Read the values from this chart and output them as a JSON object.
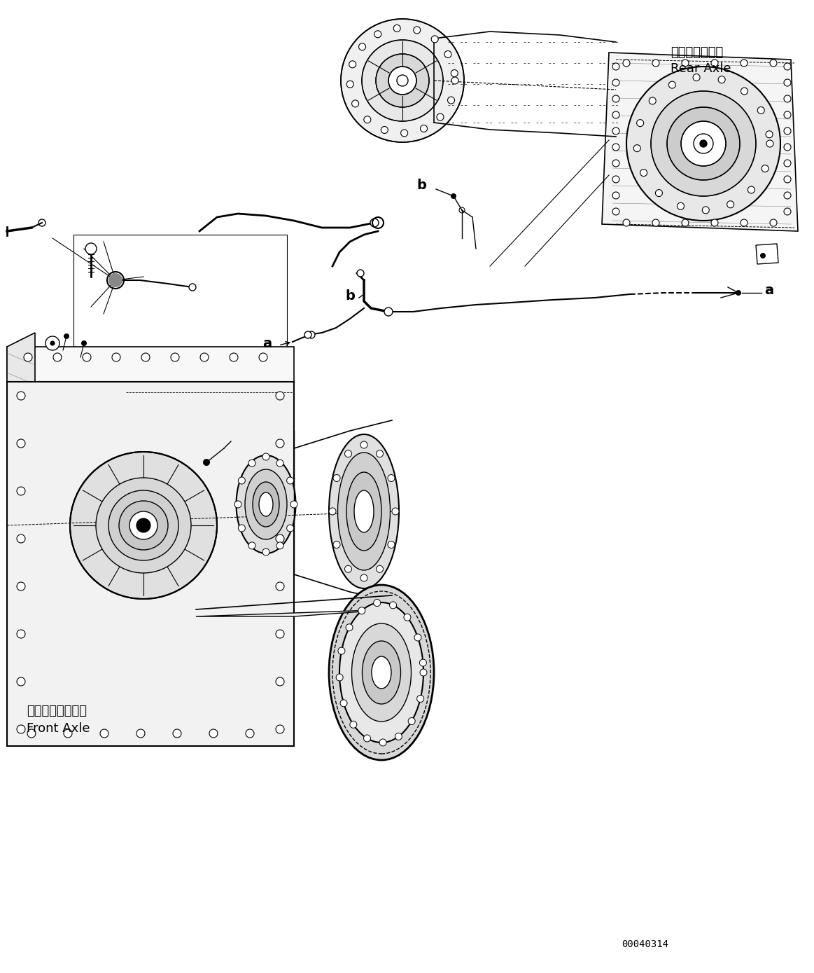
{
  "background_color": "#ffffff",
  "line_color": "#000000",
  "fig_width": 11.63,
  "fig_height": 13.89,
  "dpi": 100,
  "part_number": "00040314",
  "labels": {
    "rear_axle_jp": "リヤーアクスル",
    "rear_axle_en": "Rear Axle",
    "front_axle_jp": "フロントアクスル",
    "front_axle_en": "Front Axle",
    "label_a": "a",
    "label_b": "b"
  }
}
